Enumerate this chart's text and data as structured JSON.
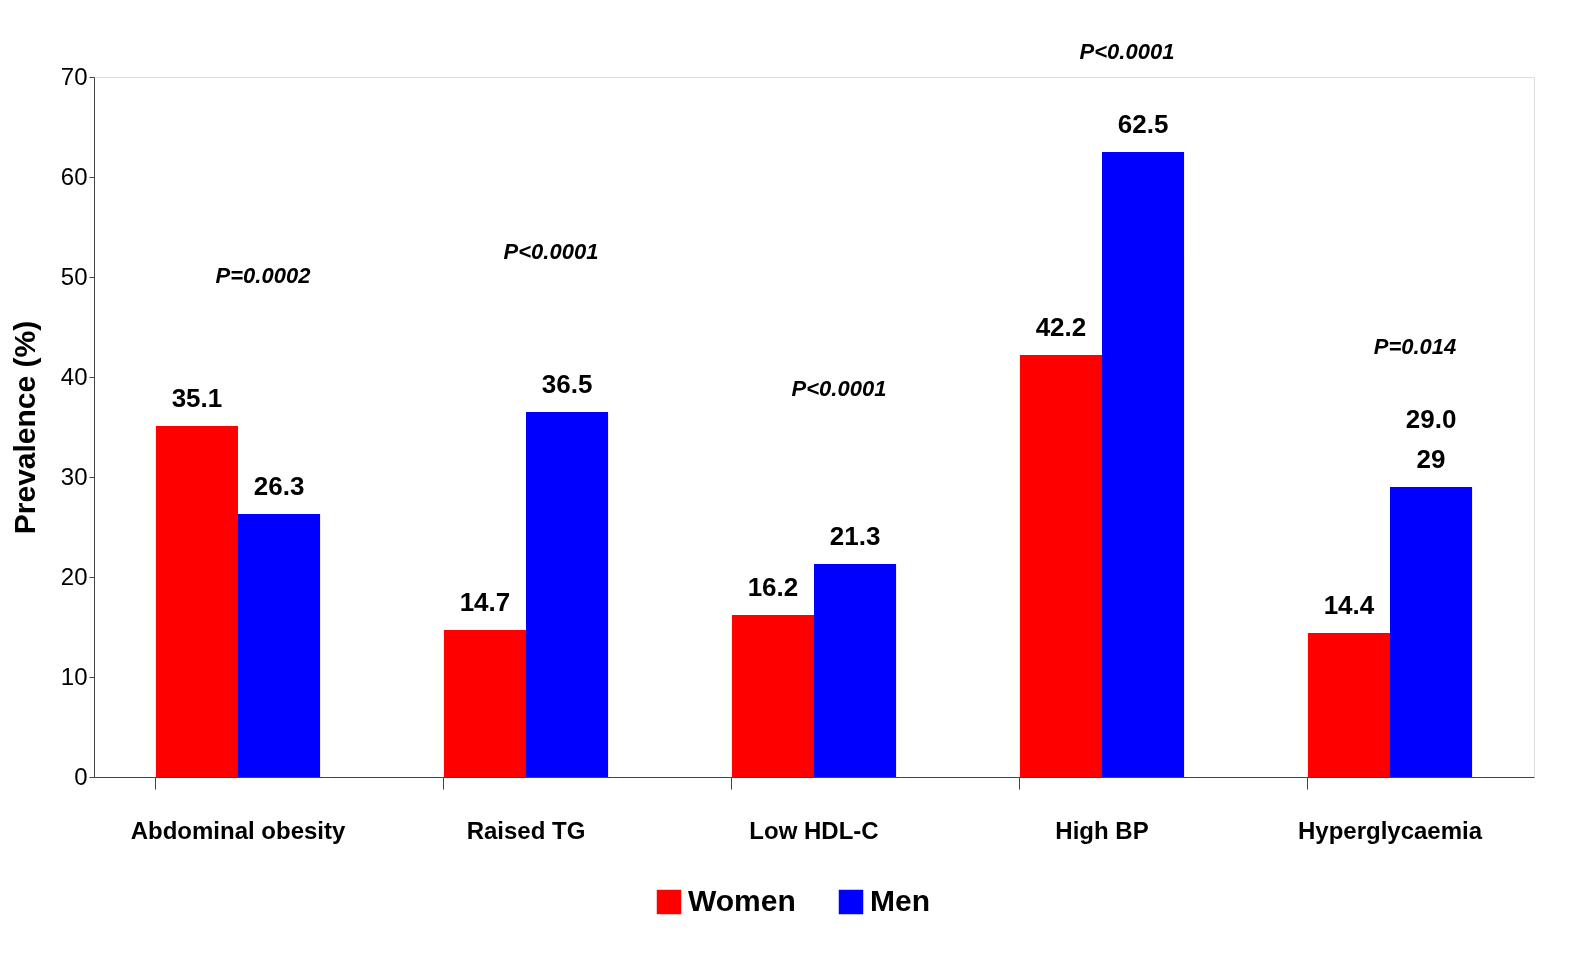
{
  "chart_data": {
    "type": "bar",
    "ylabel": "Prevalence (%)",
    "categories": [
      "Abdominal obesity",
      "Raised TG",
      "Low HDL-C",
      "High BP",
      "Hyperglycaemia"
    ],
    "series": [
      {
        "name": "Women",
        "color": "#ff0000",
        "values": [
          35.1,
          14.7,
          16.2,
          42.2,
          14.4
        ],
        "value_labels": [
          "35.1",
          "14.7",
          "16.2",
          "42.2",
          "14.4"
        ]
      },
      {
        "name": "Men",
        "color": "#0000ff",
        "values": [
          26.3,
          36.5,
          21.3,
          62.5,
          29.0
        ],
        "value_labels": [
          "26.3",
          "36.5",
          "21.3",
          "62.5",
          "29.0\n29"
        ]
      }
    ],
    "ylim": [
      0,
      70
    ],
    "yticks": [
      0,
      10,
      20,
      30,
      40,
      50,
      60,
      70
    ],
    "grid": false,
    "legend": "bottom",
    "annotations": [
      "P=0.0002",
      "P<0.0001",
      "P<0.0001",
      "P<0.0001",
      "P=0.014"
    ]
  }
}
